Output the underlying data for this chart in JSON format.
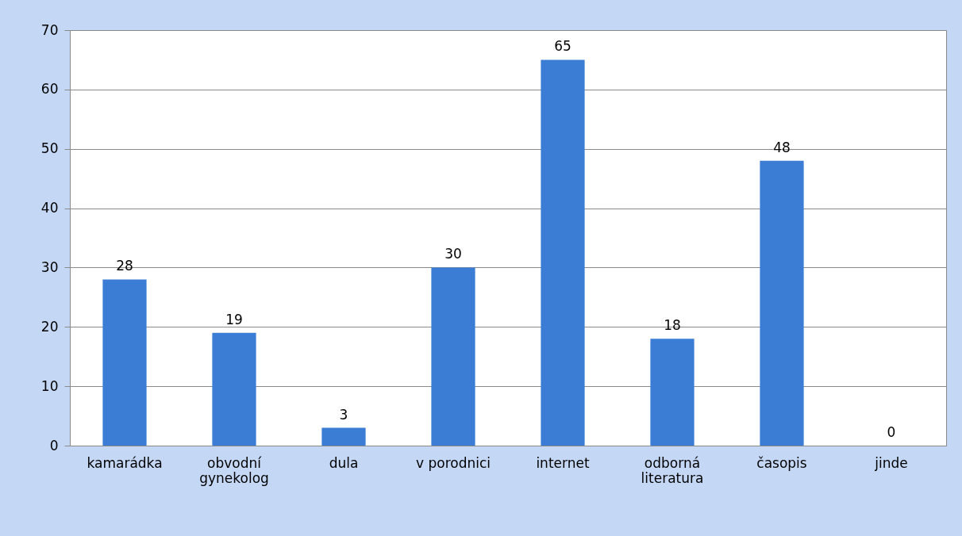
{
  "chart_data": {
    "type": "bar",
    "categories": [
      "kamarádka",
      "obvodní\ngynekolog",
      "dula",
      "v porodnici",
      "internet",
      "odborná\nliteratura",
      "časopis",
      "jinde"
    ],
    "values": [
      28,
      19,
      3,
      30,
      65,
      18,
      48,
      0
    ],
    "color": "#3b7dd4",
    "ylim": [
      0,
      70
    ],
    "yticks": [
      0,
      10,
      20,
      30,
      40,
      50,
      60,
      70
    ],
    "grid": "y",
    "data_labels": true
  }
}
